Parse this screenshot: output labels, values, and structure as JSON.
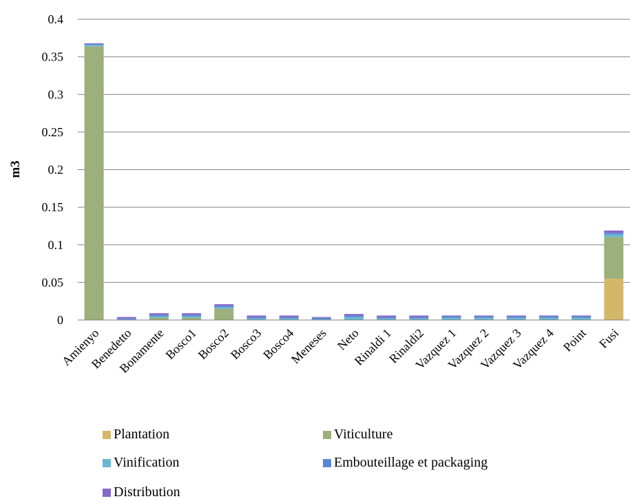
{
  "chart_data": {
    "type": "bar",
    "stacked": true,
    "title": "",
    "xlabel": "",
    "ylabel": "m3",
    "ylim": [
      0,
      0.4
    ],
    "yticks": [
      "0",
      "0.05",
      "0.1",
      "0.15",
      "0.2",
      "0.25",
      "0.3",
      "0.35",
      "0.4"
    ],
    "grid": true,
    "legend_position": "bottom",
    "categories": [
      "Amienyo",
      "Benedetto",
      "Bonamente",
      "Bosco1",
      "Bosco2",
      "Bosco3",
      "Bosco4",
      "Meneses",
      "Neto",
      "Rinaldi 1",
      "Rinaldi2",
      "Vazquez 1",
      "Vazquez 2",
      "Vazquez 3",
      "Vazquez 4",
      "Point",
      "Fusi"
    ],
    "series": [
      {
        "name": "Plantation",
        "color": "#D4B86A",
        "values": [
          0,
          0,
          0,
          0,
          0,
          0,
          0,
          0,
          0,
          0,
          0,
          0,
          0,
          0,
          0,
          0,
          0.055
        ]
      },
      {
        "name": "Viticulture",
        "color": "#9BB07A",
        "values": [
          0.364,
          0,
          0.003,
          0.003,
          0.015,
          0,
          0,
          0,
          0,
          0,
          0,
          0,
          0,
          0,
          0,
          0,
          0.055
        ]
      },
      {
        "name": "Vinification",
        "color": "#6BB7CF",
        "values": [
          0.002,
          0.001,
          0.002,
          0.002,
          0.002,
          0.002,
          0.002,
          0.001,
          0.004,
          0.002,
          0.002,
          0.003,
          0.003,
          0.003,
          0.003,
          0.003,
          0.004
        ]
      },
      {
        "name": "Embouteillage et packaging",
        "color": "#5C85D6",
        "values": [
          0.001,
          0.001,
          0.002,
          0.002,
          0.002,
          0.002,
          0.002,
          0.002,
          0.002,
          0.002,
          0.002,
          0.002,
          0.002,
          0.002,
          0.002,
          0.002,
          0.002
        ]
      },
      {
        "name": "Distribution",
        "color": "#8566C9",
        "values": [
          0.001,
          0.002,
          0.002,
          0.002,
          0.002,
          0.002,
          0.002,
          0.001,
          0.002,
          0.002,
          0.002,
          0.001,
          0.001,
          0.001,
          0.001,
          0.001,
          0.003
        ]
      }
    ]
  }
}
